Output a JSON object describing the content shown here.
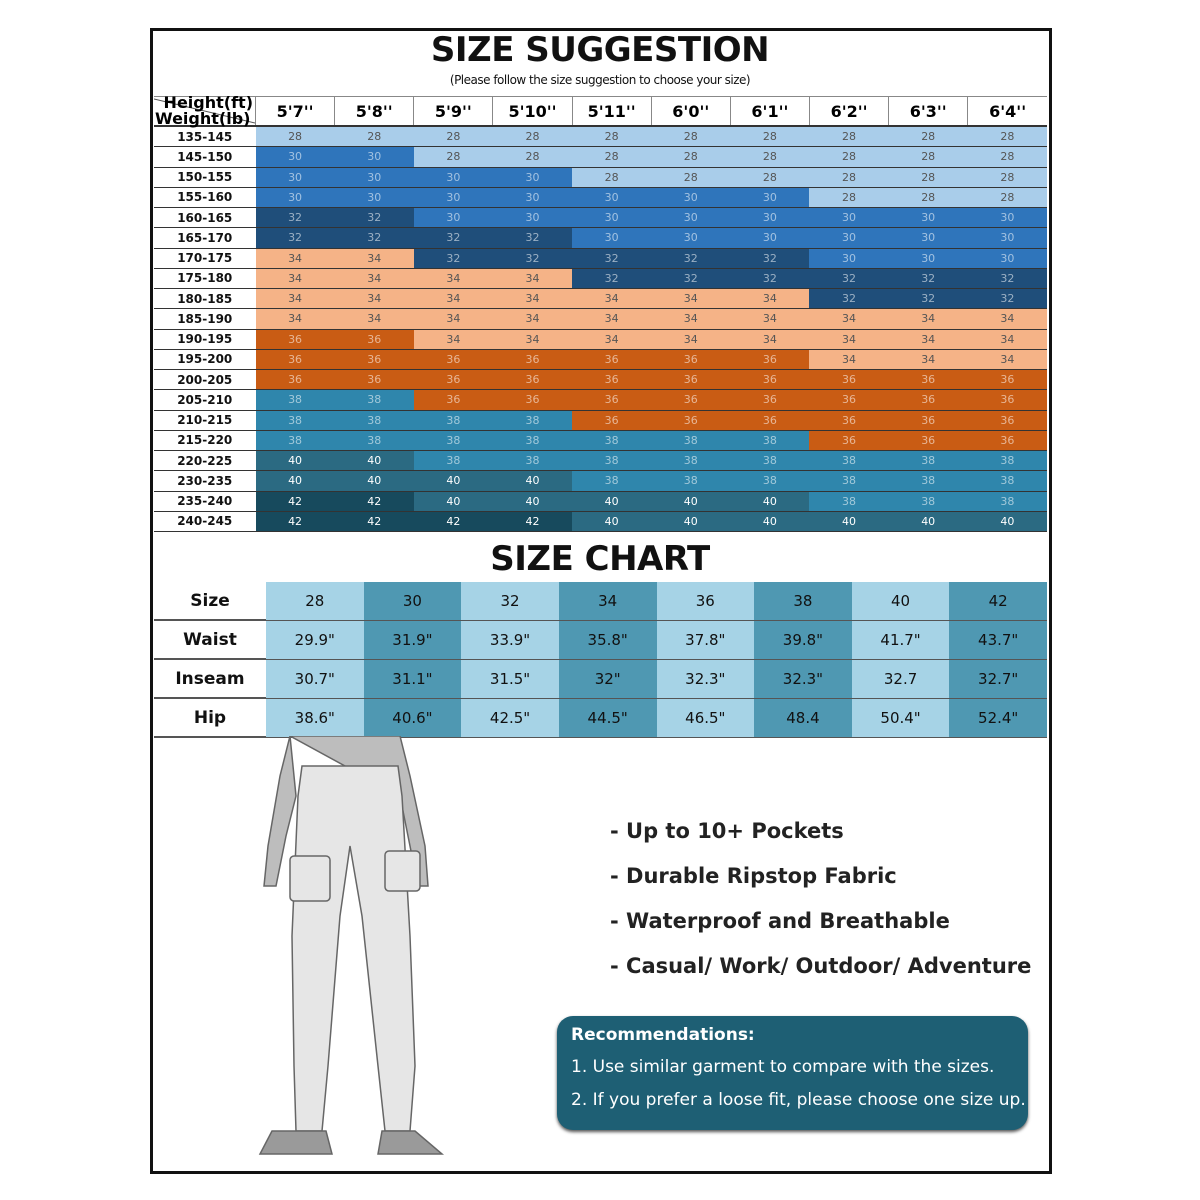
{
  "suggestion": {
    "title": "SIZE SUGGESTION",
    "subtitle": "(Please follow the size suggestion to choose your size)",
    "corner_height": "Height(ft)",
    "corner_weight": "Weight(lb)",
    "heights": [
      "5'7''",
      "5'8''",
      "5'9''",
      "5'10''",
      "5'11''",
      "6'0''",
      "6'1''",
      "6'2''",
      "6'3''",
      "6'4''"
    ],
    "rows": [
      {
        "weight": "135-145",
        "sizes": [
          28,
          28,
          28,
          28,
          28,
          28,
          28,
          28,
          28,
          28
        ]
      },
      {
        "weight": "145-150",
        "sizes": [
          30,
          30,
          28,
          28,
          28,
          28,
          28,
          28,
          28,
          28
        ]
      },
      {
        "weight": "150-155",
        "sizes": [
          30,
          30,
          30,
          30,
          28,
          28,
          28,
          28,
          28,
          28
        ]
      },
      {
        "weight": "155-160",
        "sizes": [
          30,
          30,
          30,
          30,
          30,
          30,
          30,
          28,
          28,
          28
        ]
      },
      {
        "weight": "160-165",
        "sizes": [
          32,
          32,
          30,
          30,
          30,
          30,
          30,
          30,
          30,
          30
        ]
      },
      {
        "weight": "165-170",
        "sizes": [
          32,
          32,
          32,
          32,
          30,
          30,
          30,
          30,
          30,
          30
        ]
      },
      {
        "weight": "170-175",
        "sizes": [
          34,
          34,
          32,
          32,
          32,
          32,
          32,
          30,
          30,
          30
        ]
      },
      {
        "weight": "175-180",
        "sizes": [
          34,
          34,
          34,
          34,
          32,
          32,
          32,
          32,
          32,
          32
        ]
      },
      {
        "weight": "180-185",
        "sizes": [
          34,
          34,
          34,
          34,
          34,
          34,
          34,
          32,
          32,
          32
        ]
      },
      {
        "weight": "185-190",
        "sizes": [
          34,
          34,
          34,
          34,
          34,
          34,
          34,
          34,
          34,
          34
        ]
      },
      {
        "weight": "190-195",
        "sizes": [
          36,
          36,
          34,
          34,
          34,
          34,
          34,
          34,
          34,
          34
        ]
      },
      {
        "weight": "195-200",
        "sizes": [
          36,
          36,
          36,
          36,
          36,
          36,
          36,
          34,
          34,
          34
        ]
      },
      {
        "weight": "200-205",
        "sizes": [
          36,
          36,
          36,
          36,
          36,
          36,
          36,
          36,
          36,
          36
        ]
      },
      {
        "weight": "205-210",
        "sizes": [
          38,
          38,
          36,
          36,
          36,
          36,
          36,
          36,
          36,
          36
        ]
      },
      {
        "weight": "210-215",
        "sizes": [
          38,
          38,
          38,
          38,
          36,
          36,
          36,
          36,
          36,
          36
        ]
      },
      {
        "weight": "215-220",
        "sizes": [
          38,
          38,
          38,
          38,
          38,
          38,
          38,
          36,
          36,
          36
        ]
      },
      {
        "weight": "220-225",
        "sizes": [
          40,
          40,
          38,
          38,
          38,
          38,
          38,
          38,
          38,
          38
        ]
      },
      {
        "weight": "230-235",
        "sizes": [
          40,
          40,
          40,
          40,
          38,
          38,
          38,
          38,
          38,
          38
        ]
      },
      {
        "weight": "235-240",
        "sizes": [
          42,
          42,
          40,
          40,
          40,
          40,
          40,
          38,
          38,
          38
        ]
      },
      {
        "weight": "240-245",
        "sizes": [
          42,
          42,
          42,
          42,
          40,
          40,
          40,
          40,
          40,
          40
        ]
      }
    ],
    "size_colors": {
      "28": "#a9cdea",
      "30": "#2f75bb",
      "32": "#1f4e7a",
      "34": "#f5b387",
      "36": "#c95c14",
      "38": "#2f86ac",
      "40": "#2b6a82",
      "42": "#174a5d"
    }
  },
  "chart": {
    "title": "SIZE CHART",
    "rows": [
      {
        "label": "Size",
        "values": [
          "28",
          "30",
          "32",
          "34",
          "36",
          "38",
          "40",
          "42"
        ]
      },
      {
        "label": "Waist",
        "values": [
          "29.9\"",
          "31.9\"",
          "33.9\"",
          "35.8\"",
          "37.8\"",
          "39.8\"",
          "41.7\"",
          "43.7\""
        ]
      },
      {
        "label": "Inseam",
        "values": [
          "30.7\"",
          "31.1\"",
          "31.5\"",
          "32\"",
          "32.3\"",
          "32.3\"",
          "32.7",
          "32.7\""
        ]
      },
      {
        "label": "Hip",
        "values": [
          "38.6\"",
          "40.6\"",
          "42.5\"",
          "44.5\"",
          "46.5\"",
          "48.4",
          "50.4\"",
          "52.4\""
        ]
      }
    ],
    "colors": {
      "light": "#a6d3e6",
      "dark": "#4f98b2"
    }
  },
  "features": [
    "- Up to 10+ Pockets",
    "- Durable Ripstop Fabric",
    "- Waterproof and Breathable",
    "- Casual/ Work/ Outdoor/ Adventure"
  ],
  "recommendations": {
    "title": "Recommendations:",
    "items": [
      "1. Use similar garment to compare with the sizes.",
      "2. If you prefer a loose fit, please choose one size up."
    ],
    "color": "#1e5f74"
  }
}
